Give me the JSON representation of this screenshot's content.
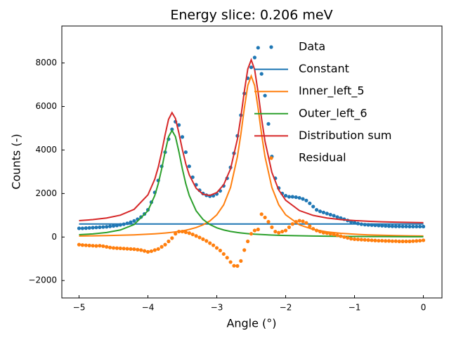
{
  "chart_data": {
    "type": "line",
    "title": "Energy slice: 0.206 meV",
    "x_label": "Angle (°)",
    "y_label": "Counts (-)",
    "xlim": [
      -5.25,
      0.27
    ],
    "ylim": [
      -2800,
      9700
    ],
    "xticks": [
      {
        "value": -5,
        "label": "−5"
      },
      {
        "value": -4,
        "label": "−4"
      },
      {
        "value": -3,
        "label": "−3"
      },
      {
        "value": -2,
        "label": "−2"
      },
      {
        "value": -1,
        "label": "−1"
      },
      0
    ],
    "yticks": [
      {
        "value": -2000,
        "label": "−2000"
      },
      0,
      2000,
      4000,
      6000,
      8000
    ],
    "grid": false,
    "legend": "upper right",
    "series": [
      {
        "name": "Data",
        "type": "scatter",
        "color": "#1f77b4",
        "x": [
          -5,
          -4.95,
          -4.9,
          -4.85,
          -4.8,
          -4.75,
          -4.7,
          -4.65,
          -4.6,
          -4.55,
          -4.5,
          -4.45,
          -4.4,
          -4.35,
          -4.3,
          -4.25,
          -4.2,
          -4.15,
          -4.1,
          -4.05,
          -4,
          -3.95,
          -3.9,
          -3.85,
          -3.8,
          -3.75,
          -3.7,
          -3.65,
          -3.6,
          -3.55,
          -3.5,
          -3.45,
          -3.4,
          -3.35,
          -3.3,
          -3.25,
          -3.2,
          -3.15,
          -3.1,
          -3.05,
          -3,
          -2.95,
          -2.9,
          -2.85,
          -2.8,
          -2.75,
          -2.7,
          -2.65,
          -2.6,
          -2.55,
          -2.5,
          -2.45,
          -2.4,
          -2.35,
          -2.3,
          -2.25,
          -2.2,
          -2.15,
          -2.1,
          -2.05,
          -2,
          -1.95,
          -1.9,
          -1.85,
          -1.8,
          -1.75,
          -1.7,
          -1.65,
          -1.6,
          -1.55,
          -1.5,
          -1.45,
          -1.4,
          -1.35,
          -1.3,
          -1.25,
          -1.2,
          -1.15,
          -1.1,
          -1.05,
          -1,
          -0.95,
          -0.9,
          -0.85,
          -0.8,
          -0.75,
          -0.7,
          -0.65,
          -0.6,
          -0.55,
          -0.5,
          -0.45,
          -0.4,
          -0.35,
          -0.3,
          -0.25,
          -0.2,
          -0.15,
          -0.1,
          -0.05,
          0
        ],
        "values": [
          400,
          400,
          410,
          420,
          430,
          440,
          450,
          460,
          470,
          490,
          510,
          530,
          560,
          590,
          630,
          680,
          740,
          820,
          920,
          1060,
          1250,
          1600,
          2050,
          2600,
          3250,
          3900,
          4500,
          4950,
          5300,
          5150,
          4600,
          3900,
          3250,
          2750,
          2400,
          2150,
          2000,
          1920,
          1880,
          1900,
          1980,
          2120,
          2350,
          2700,
          3200,
          3850,
          4650,
          5600,
          6600,
          7300,
          7800,
          8250,
          8700,
          7500,
          6500,
          5200,
          3700,
          2700,
          2250,
          2000,
          1900,
          1850,
          1850,
          1830,
          1800,
          1750,
          1680,
          1550,
          1400,
          1250,
          1180,
          1130,
          1080,
          1030,
          980,
          920,
          870,
          820,
          760,
          700,
          660,
          620,
          590,
          570,
          560,
          550,
          540,
          530,
          520,
          510,
          500,
          495,
          490,
          490,
          485,
          485,
          480,
          480,
          480,
          480,
          480
        ]
      },
      {
        "name": "Constant",
        "type": "line",
        "color": "#1f77b4",
        "x": [
          -5,
          0
        ],
        "values": [
          600,
          600
        ]
      },
      {
        "name": "Inner_left_5",
        "type": "line",
        "color": "#ff7f0e",
        "x": [
          -5,
          -4.8,
          -4.6,
          -4.4,
          -4.2,
          -4,
          -3.9,
          -3.85,
          -3.8,
          -3.75,
          -3.7,
          -3.65,
          -3.6,
          -3.55,
          -3.5,
          -3.45,
          -3.4,
          -3.3,
          -3.2,
          -3.1,
          -3,
          -2.9,
          -2.8,
          -2.7,
          -2.65,
          -2.6,
          -2.55,
          -2.5,
          -2.45,
          -2.4,
          -2.35,
          -2.3,
          -2.2,
          -2.1,
          -2,
          -1.8,
          -1.6,
          -1.4,
          -1.2,
          -1,
          -0.8,
          -0.6,
          -0.4,
          -0.2,
          0
        ],
        "values": [
          47,
          56,
          67,
          81,
          101,
          130,
          148,
          159,
          171,
          185,
          200,
          218,
          237,
          259,
          285,
          314,
          349,
          435,
          559,
          740,
          1021,
          1480,
          2279,
          3700,
          4736,
          5920,
          6963,
          7400,
          6963,
          5920,
          4736,
          3700,
          2279,
          1480,
          1021,
          559,
          349,
          237,
          171,
          130,
          101,
          81,
          67,
          56,
          47
        ]
      },
      {
        "name": "Outer_left_6",
        "type": "line",
        "color": "#2ca02c",
        "x": [
          -5,
          -4.8,
          -4.6,
          -4.4,
          -4.2,
          -4,
          -3.9,
          -3.85,
          -3.8,
          -3.75,
          -3.7,
          -3.65,
          -3.6,
          -3.55,
          -3.5,
          -3.45,
          -3.4,
          -3.3,
          -3.2,
          -3.1,
          -3,
          -2.9,
          -2.8,
          -2.7,
          -2.65,
          -2.6,
          -2.55,
          -2.5,
          -2.45,
          -2.4,
          -2.35,
          -2.3,
          -2.2,
          -2.1,
          -2,
          -1.8,
          -1.6,
          -1.4,
          -1.2,
          -1,
          -0.8,
          -0.6,
          -0.4,
          -0.2,
          0
        ],
        "values": [
          105,
          144,
          208,
          325,
          573,
          1206,
          1912,
          2450,
          3136,
          3920,
          4612,
          4900,
          4612,
          3920,
          3136,
          2450,
          1912,
          1206,
          809,
          573,
          424,
          325,
          257,
          208,
          189,
          172,
          157,
          144,
          132,
          123,
          113,
          105,
          92,
          80,
          71,
          57,
          46,
          38,
          32,
          28,
          24,
          21,
          19,
          16,
          15
        ]
      },
      {
        "name": "Distribution sum",
        "type": "line",
        "color": "#d62728",
        "x": [
          -5,
          -4.8,
          -4.6,
          -4.4,
          -4.2,
          -4,
          -3.9,
          -3.85,
          -3.8,
          -3.75,
          -3.7,
          -3.65,
          -3.6,
          -3.55,
          -3.5,
          -3.45,
          -3.4,
          -3.3,
          -3.2,
          -3.1,
          -3,
          -2.9,
          -2.8,
          -2.7,
          -2.65,
          -2.6,
          -2.55,
          -2.5,
          -2.45,
          -2.4,
          -2.35,
          -2.3,
          -2.2,
          -2.1,
          -2,
          -1.8,
          -1.6,
          -1.4,
          -1.2,
          -1,
          -0.8,
          -0.6,
          -0.4,
          -0.2,
          0
        ],
        "values": [
          752,
          800,
          875,
          1006,
          1274,
          1936,
          2660,
          3209,
          3907,
          4705,
          5412,
          5718,
          5449,
          4779,
          4021,
          3364,
          2861,
          2241,
          1968,
          1913,
          2045,
          2405,
          3136,
          4508,
          5525,
          6692,
          7720,
          8144,
          7695,
          6643,
          5449,
          4405,
          2971,
          2160,
          1692,
          1216,
          995,
          875,
          803,
          758,
          725,
          702,
          686,
          672,
          662
        ]
      },
      {
        "name": "Residual",
        "type": "scatter",
        "color": "#ff7f0e",
        "x": [
          -5,
          -4.95,
          -4.9,
          -4.85,
          -4.8,
          -4.75,
          -4.7,
          -4.65,
          -4.6,
          -4.55,
          -4.5,
          -4.45,
          -4.4,
          -4.35,
          -4.3,
          -4.25,
          -4.2,
          -4.15,
          -4.1,
          -4.05,
          -4,
          -3.95,
          -3.9,
          -3.85,
          -3.8,
          -3.75,
          -3.7,
          -3.65,
          -3.6,
          -3.55,
          -3.5,
          -3.45,
          -3.4,
          -3.35,
          -3.3,
          -3.25,
          -3.2,
          -3.15,
          -3.1,
          -3.05,
          -3,
          -2.95,
          -2.9,
          -2.85,
          -2.8,
          -2.75,
          -2.7,
          -2.65,
          -2.6,
          -2.55,
          -2.5,
          -2.45,
          -2.4,
          -2.35,
          -2.3,
          -2.25,
          -2.2,
          -2.15,
          -2.1,
          -2.05,
          -2,
          -1.95,
          -1.9,
          -1.85,
          -1.8,
          -1.75,
          -1.7,
          -1.65,
          -1.6,
          -1.55,
          -1.5,
          -1.45,
          -1.4,
          -1.35,
          -1.3,
          -1.25,
          -1.2,
          -1.15,
          -1.1,
          -1.05,
          -1,
          -0.95,
          -0.9,
          -0.85,
          -0.8,
          -0.75,
          -0.7,
          -0.65,
          -0.6,
          -0.55,
          -0.5,
          -0.45,
          -0.4,
          -0.35,
          -0.3,
          -0.25,
          -0.2,
          -0.15,
          -0.1,
          -0.05,
          0
        ],
        "values": [
          -350,
          -370,
          -380,
          -390,
          -400,
          -410,
          -400,
          -420,
          -450,
          -480,
          -500,
          -510,
          -520,
          -530,
          -540,
          -550,
          -560,
          -580,
          -600,
          -640,
          -680,
          -650,
          -600,
          -550,
          -450,
          -350,
          -200,
          -50,
          150,
          250,
          250,
          220,
          180,
          120,
          50,
          -20,
          -100,
          -180,
          -280,
          -380,
          -500,
          -620,
          -780,
          -950,
          -1150,
          -1320,
          -1330,
          -1100,
          -600,
          -200,
          150,
          300,
          350,
          1050,
          900,
          700,
          450,
          250,
          200,
          250,
          300,
          450,
          600,
          700,
          750,
          720,
          650,
          500,
          380,
          300,
          250,
          200,
          180,
          150,
          120,
          80,
          40,
          0,
          -40,
          -80,
          -100,
          -110,
          -120,
          -130,
          -140,
          -150,
          -160,
          -170,
          -170,
          -180,
          -180,
          -190,
          -190,
          -200,
          -200,
          -200,
          -200,
          -190,
          -180,
          -170,
          -150
        ]
      }
    ]
  }
}
